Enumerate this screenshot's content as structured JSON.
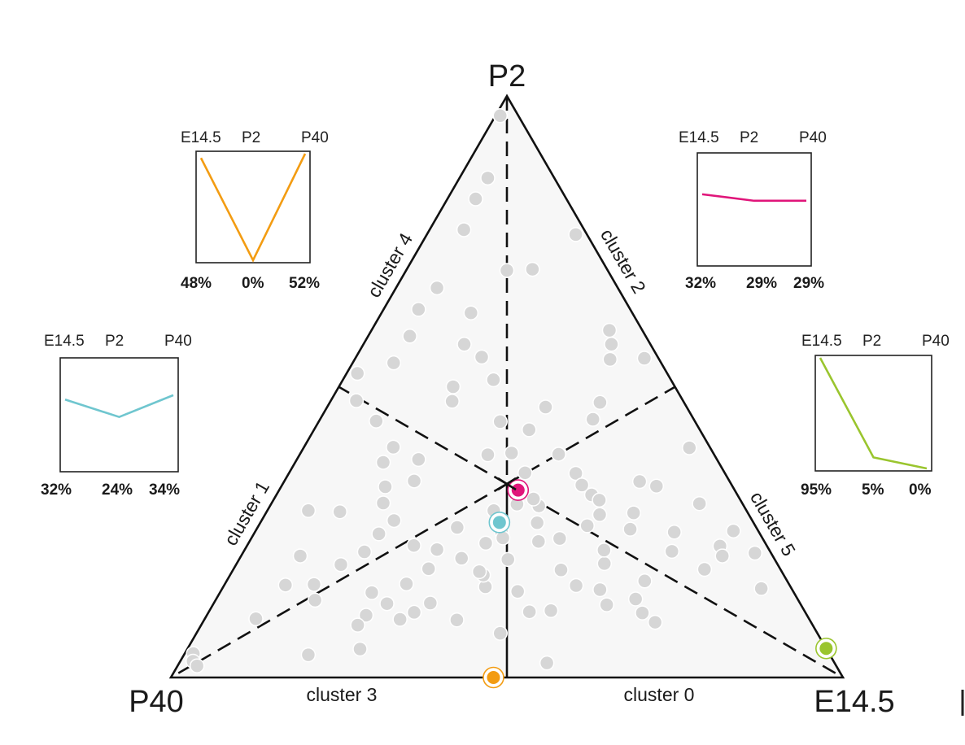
{
  "chart_data": {
    "type": "scatter",
    "subtype": "ternary",
    "vertices": {
      "top": "P2",
      "left": "P40",
      "right": "E14.5"
    },
    "edge_labels": {
      "upper_left": "cluster 4",
      "upper_right": "cluster 2",
      "lower_left": "cluster 1",
      "lower_right": "cluster 5",
      "bottom_left": "cluster 3",
      "bottom_right": "cluster 0"
    },
    "center": [
      0.333,
      0.333,
      0.333
    ],
    "gene_points": [
      [
        0.007,
        0.966,
        0.027
      ],
      [
        0.042,
        0.859,
        0.099
      ],
      [
        0.042,
        0.823,
        0.135
      ],
      [
        0.051,
        0.77,
        0.179
      ],
      [
        0.061,
        0.67,
        0.269
      ],
      [
        0.052,
        0.633,
        0.315
      ],
      [
        0.062,
        0.587,
        0.351
      ],
      [
        0.061,
        0.541,
        0.398
      ],
      [
        0.016,
        0.523,
        0.461
      ],
      [
        0.038,
        0.476,
        0.486
      ],
      [
        0.085,
        0.441,
        0.474
      ],
      [
        0.133,
        0.396,
        0.471
      ],
      [
        0.131,
        0.37,
        0.499
      ],
      [
        0.109,
        0.285,
        0.606
      ],
      [
        0.061,
        0.287,
        0.652
      ],
      [
        0.088,
        0.209,
        0.703
      ],
      [
        0.091,
        0.159,
        0.75
      ],
      [
        0.076,
        0.101,
        0.823
      ],
      [
        0.013,
        0.041,
        0.946
      ],
      [
        0.019,
        0.028,
        0.953
      ],
      [
        0.029,
        0.02,
        0.951
      ],
      [
        0.148,
        0.133,
        0.719
      ],
      [
        0.133,
        0.16,
        0.707
      ],
      [
        0.156,
        0.194,
        0.65
      ],
      [
        0.18,
        0.216,
        0.604
      ],
      [
        0.186,
        0.247,
        0.567
      ],
      [
        0.197,
        0.27,
        0.533
      ],
      [
        0.166,
        0.3,
        0.534
      ],
      [
        0.155,
        0.328,
        0.517
      ],
      [
        0.193,
        0.338,
        0.469
      ],
      [
        0.181,
        0.375,
        0.444
      ],
      [
        0.181,
        0.475,
        0.344
      ],
      [
        0.17,
        0.5,
        0.33
      ],
      [
        0.224,
        0.512,
        0.264
      ],
      [
        0.187,
        0.551,
        0.262
      ],
      [
        0.15,
        0.573,
        0.277
      ],
      [
        0.133,
        0.627,
        0.24
      ],
      [
        0.187,
        0.702,
        0.111
      ],
      [
        0.226,
        0.777,
        0.017
      ],
      [
        0.15,
        0.7,
        0.15
      ],
      [
        0.27,
        0.44,
        0.29
      ],
      [
        0.28,
        0.383,
        0.337
      ],
      [
        0.314,
        0.386,
        0.3
      ],
      [
        0.351,
        0.352,
        0.297
      ],
      [
        0.366,
        0.298,
        0.336
      ],
      [
        0.337,
        0.287,
        0.376
      ],
      [
        0.367,
        0.25,
        0.383
      ],
      [
        0.353,
        0.231,
        0.416
      ],
      [
        0.33,
        0.205,
        0.465
      ],
      [
        0.29,
        0.187,
        0.523
      ],
      [
        0.248,
        0.227,
        0.525
      ],
      [
        0.27,
        0.161,
        0.569
      ],
      [
        0.258,
        0.127,
        0.615
      ],
      [
        0.237,
        0.107,
        0.656
      ],
      [
        0.233,
        0.09,
        0.677
      ],
      [
        0.257,
        0.049,
        0.694
      ],
      [
        0.185,
        0.039,
        0.776
      ],
      [
        0.286,
        0.22,
        0.494
      ],
      [
        0.297,
        0.258,
        0.445
      ],
      [
        0.306,
        0.112,
        0.582
      ],
      [
        0.39,
        0.156,
        0.454
      ],
      [
        0.322,
        0.128,
        0.55
      ],
      [
        0.291,
        0.1,
        0.609
      ],
      [
        0.226,
        0.146,
        0.628
      ],
      [
        0.4,
        0.295,
        0.305
      ],
      [
        0.386,
        0.307,
        0.307
      ],
      [
        0.385,
        0.384,
        0.231
      ],
      [
        0.32,
        0.426,
        0.254
      ],
      [
        0.325,
        0.465,
        0.21
      ],
      [
        0.402,
        0.473,
        0.125
      ],
      [
        0.354,
        0.597,
        0.049
      ],
      [
        0.38,
        0.547,
        0.073
      ],
      [
        0.369,
        0.573,
        0.058
      ],
      [
        0.43,
        0.549,
        0.021
      ],
      [
        0.406,
        0.444,
        0.15
      ],
      [
        0.427,
        0.351,
        0.222
      ],
      [
        0.469,
        0.314,
        0.217
      ],
      [
        0.529,
        0.337,
        0.134
      ],
      [
        0.558,
        0.329,
        0.113
      ],
      [
        0.547,
        0.283,
        0.17
      ],
      [
        0.556,
        0.255,
        0.189
      ],
      [
        0.637,
        0.299,
        0.064
      ],
      [
        0.711,
        0.252,
        0.037
      ],
      [
        0.704,
        0.226,
        0.07
      ],
      [
        0.762,
        0.214,
        0.024
      ],
      [
        0.802,
        0.153,
        0.045
      ],
      [
        0.716,
        0.209,
        0.075
      ],
      [
        0.701,
        0.186,
        0.113
      ],
      [
        0.624,
        0.25,
        0.126
      ],
      [
        0.637,
        0.217,
        0.146
      ],
      [
        0.622,
        0.166,
        0.212
      ],
      [
        0.624,
        0.135,
        0.241
      ],
      [
        0.646,
        0.111,
        0.243
      ],
      [
        0.673,
        0.095,
        0.232
      ],
      [
        0.586,
        0.125,
        0.289
      ],
      [
        0.563,
        0.151,
        0.286
      ],
      [
        0.547,
        0.196,
        0.257
      ],
      [
        0.535,
        0.219,
        0.246
      ],
      [
        0.488,
        0.185,
        0.327
      ],
      [
        0.459,
        0.239,
        0.302
      ],
      [
        0.498,
        0.28,
        0.222
      ],
      [
        0.43,
        0.234,
        0.336
      ],
      [
        0.442,
        0.148,
        0.41
      ],
      [
        0.477,
        0.113,
        0.41
      ],
      [
        0.508,
        0.115,
        0.377
      ],
      [
        0.452,
        0.076,
        0.472
      ],
      [
        0.547,
        0.025,
        0.428
      ],
      [
        0.485,
        0.305,
        0.21
      ],
      [
        0.489,
        0.261,
        0.25
      ],
      [
        0.574,
        0.395,
        0.031
      ],
      [
        0.446,
        0.331,
        0.223
      ],
      [
        0.412,
        0.266,
        0.322
      ],
      [
        0.4,
        0.203,
        0.397
      ],
      [
        0.377,
        0.176,
        0.447
      ],
      [
        0.368,
        0.182,
        0.45
      ],
      [
        0.376,
        0.099,
        0.525
      ],
      [
        0.374,
        0.24,
        0.386
      ],
      [
        0.524,
        0.158,
        0.318
      ]
    ],
    "highlighted_points": [
      {
        "color": "#f39c12",
        "composition": [
          0.48,
          0.0,
          0.52
        ],
        "labels": [
          "48%",
          "0%",
          "52%"
        ]
      },
      {
        "color": "#e0157a",
        "composition": [
          0.32,
          0.29,
          0.29
        ],
        "labels": [
          "32%",
          "29%",
          "29%"
        ]
      },
      {
        "color": "#6fc6cf",
        "composition": [
          0.32,
          0.24,
          0.34
        ],
        "labels": [
          "32%",
          "24%",
          "34%"
        ]
      },
      {
        "color": "#9ac52e",
        "composition": [
          0.95,
          0.05,
          0.0
        ],
        "labels": [
          "95%",
          "5%",
          "0%"
        ]
      }
    ],
    "insets": [
      {
        "name": "orange",
        "color": "#f39c12",
        "x": [
          "E14.5",
          "P2",
          "P40"
        ],
        "values": [
          48,
          0,
          52
        ],
        "value_labels": [
          "48%",
          "0%",
          "52%"
        ]
      },
      {
        "name": "magenta",
        "color": "#e0157a",
        "x": [
          "E14.5",
          "P2",
          "P40"
        ],
        "values": [
          32,
          29,
          29
        ],
        "value_labels": [
          "32%",
          "29%",
          "29%"
        ]
      },
      {
        "name": "cyan",
        "color": "#6fc6cf",
        "x": [
          "E14.5",
          "P2",
          "P40"
        ],
        "values": [
          32,
          24,
          34
        ],
        "value_labels": [
          "32%",
          "24%",
          "34%"
        ]
      },
      {
        "name": "green",
        "color": "#9ac52e",
        "x": [
          "E14.5",
          "P2",
          "P40"
        ],
        "values": [
          95,
          5,
          0
        ],
        "value_labels": [
          "95%",
          "5%",
          "0%"
        ]
      }
    ],
    "title": "",
    "xlabel": "",
    "ylabel": ""
  },
  "colors": {
    "background_fill": "#f7f7f7",
    "gene_point": "#d6d6d6",
    "frame": "#111111"
  }
}
